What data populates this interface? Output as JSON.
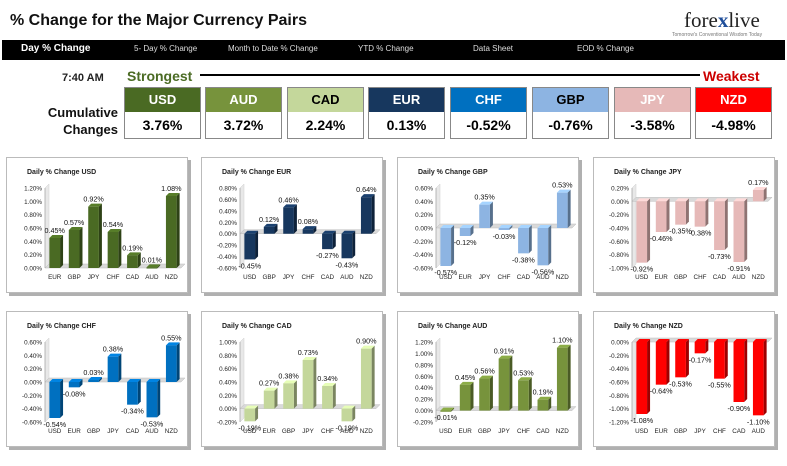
{
  "header": {
    "title": "% Change for the Major Currency Pairs",
    "logo_text_a": "fore",
    "logo_text_x": "x",
    "logo_text_b": "live",
    "logo_tagline": "Tomorrow's Conventional Wisdom Today"
  },
  "nav": [
    {
      "label": "Day % Change",
      "active": true
    },
    {
      "label": "5- Day % Change",
      "active": false
    },
    {
      "label": "Month to Date % Change",
      "active": false
    },
    {
      "label": "YTD % Change",
      "active": false
    },
    {
      "label": "Data Sheet",
      "active": false
    },
    {
      "label": "EOD % Change",
      "active": false
    }
  ],
  "ranking": {
    "time": "7:40 AM",
    "strongest_label": "Strongest",
    "weakest_label": "Weakest",
    "cumulative_label": "Cumulative Changes",
    "currencies": [
      {
        "code": "USD",
        "value": "3.76%",
        "color": "#4a6a23",
        "text_color": "#ffffff"
      },
      {
        "code": "AUD",
        "value": "3.72%",
        "color": "#77933c",
        "text_color": "#ffffff"
      },
      {
        "code": "CAD",
        "value": "2.24%",
        "color": "#c4d79b",
        "text_color": "#000000"
      },
      {
        "code": "EUR",
        "value": "0.13%",
        "color": "#17375e",
        "text_color": "#ffffff"
      },
      {
        "code": "CHF",
        "value": "-0.52%",
        "color": "#0070c0",
        "text_color": "#ffffff"
      },
      {
        "code": "GBP",
        "value": "-0.76%",
        "color": "#8db4e2",
        "text_color": "#000000"
      },
      {
        "code": "JPY",
        "value": "-3.58%",
        "color": "#e6b9b8",
        "text_color": "#ffffff"
      },
      {
        "code": "NZD",
        "value": "-4.98%",
        "color": "#ff0000",
        "text_color": "#ffffff"
      }
    ]
  },
  "chart_data": [
    {
      "type": "bar",
      "title": "Daily % Change USD",
      "categories": [
        "EUR",
        "GBP",
        "JPY",
        "CHF",
        "CAD",
        "AUD",
        "NZD"
      ],
      "values": [
        0.45,
        0.57,
        0.92,
        0.54,
        0.19,
        0.01,
        1.08
      ],
      "data_labels": [
        "0.45%",
        "0.57%",
        "0.92%",
        "0.54%",
        "0.19%",
        "0.01%",
        "1.08%"
      ],
      "ylim": [
        0,
        1.2
      ],
      "yticks": [
        "0.00%",
        "0.20%",
        "0.40%",
        "0.60%",
        "0.80%",
        "1.00%",
        "1.20%"
      ],
      "color": "#4a6a23"
    },
    {
      "type": "bar",
      "title": "Daily % Change EUR",
      "categories": [
        "USD",
        "GBP",
        "JPY",
        "CHF",
        "CAD",
        "AUD",
        "NZD"
      ],
      "values": [
        -0.45,
        0.12,
        0.46,
        0.08,
        -0.27,
        -0.43,
        0.64
      ],
      "data_labels": [
        "-0.45%",
        "0.12%",
        "0.46%",
        "0.08%",
        "-0.27%",
        "-0.43%",
        "0.64%"
      ],
      "ylim": [
        -0.6,
        0.8
      ],
      "yticks": [
        "-0.60%",
        "-0.40%",
        "-0.20%",
        "0.00%",
        "0.20%",
        "0.40%",
        "0.60%",
        "0.80%"
      ],
      "color": "#17375e"
    },
    {
      "type": "bar",
      "title": "Daily % Change GBP",
      "categories": [
        "USD",
        "EUR",
        "JPY",
        "CHF",
        "CAD",
        "AUD",
        "NZD"
      ],
      "values": [
        -0.57,
        -0.12,
        0.35,
        -0.03,
        -0.38,
        -0.56,
        0.53
      ],
      "data_labels": [
        "-0.57%",
        "-0.12%",
        "0.35%",
        "-0.03%",
        "-0.38%",
        "-0.56%",
        "0.53%"
      ],
      "ylim": [
        -0.6,
        0.6
      ],
      "yticks": [
        "-0.60%",
        "-0.40%",
        "-0.20%",
        "0.00%",
        "0.20%",
        "0.40%",
        "0.60%"
      ],
      "color": "#8db4e2"
    },
    {
      "type": "bar",
      "title": "Daily % Change JPY",
      "categories": [
        "USD",
        "EUR",
        "GBP",
        "CHF",
        "CAD",
        "AUD",
        "NZD"
      ],
      "values": [
        -0.92,
        -0.46,
        -0.35,
        -0.38,
        -0.73,
        -0.91,
        0.17
      ],
      "data_labels": [
        "-0.92%",
        "-0.46%",
        "-0.35%",
        "-0.38%",
        "-0.73%",
        "-0.91%",
        "0.17%"
      ],
      "ylim": [
        -1.0,
        0.2
      ],
      "yticks": [
        "-1.00%",
        "-0.80%",
        "-0.60%",
        "-0.40%",
        "-0.20%",
        "0.00%",
        "0.20%"
      ],
      "color": "#e6b9b8"
    },
    {
      "type": "bar",
      "title": "Daily % Change CHF",
      "categories": [
        "USD",
        "EUR",
        "GBP",
        "JPY",
        "CAD",
        "AUD",
        "NZD"
      ],
      "values": [
        -0.54,
        -0.08,
        0.03,
        0.38,
        -0.34,
        -0.53,
        0.55
      ],
      "data_labels": [
        "-0.54%",
        "-0.08%",
        "0.03%",
        "0.38%",
        "-0.34%",
        "-0.53%",
        "0.55%"
      ],
      "ylim": [
        -0.6,
        0.6
      ],
      "yticks": [
        "-0.60%",
        "-0.40%",
        "-0.20%",
        "0.00%",
        "0.20%",
        "0.40%",
        "0.60%"
      ],
      "color": "#0070c0"
    },
    {
      "type": "bar",
      "title": "Daily % Change CAD",
      "categories": [
        "USD",
        "EUR",
        "GBP",
        "JPY",
        "CHF",
        "AUD",
        "NZD"
      ],
      "values": [
        -0.19,
        0.27,
        0.38,
        0.73,
        0.34,
        -0.19,
        0.9
      ],
      "data_labels": [
        "-0.19%",
        "0.27%",
        "0.38%",
        "0.73%",
        "0.34%",
        "-0.19%",
        "0.90%"
      ],
      "ylim": [
        -0.2,
        1.0
      ],
      "yticks": [
        "-0.20%",
        "0.00%",
        "0.20%",
        "0.40%",
        "0.60%",
        "0.80%",
        "1.00%"
      ],
      "color": "#c4d79b"
    },
    {
      "type": "bar",
      "title": "Daily % Change AUD",
      "categories": [
        "USD",
        "EUR",
        "GBP",
        "JPY",
        "CHF",
        "CAD",
        "NZD"
      ],
      "values": [
        -0.01,
        0.45,
        0.56,
        0.91,
        0.53,
        0.19,
        1.1
      ],
      "data_labels": [
        "-0.01%",
        "0.45%",
        "0.56%",
        "0.91%",
        "0.53%",
        "0.19%",
        "1.10%"
      ],
      "ylim": [
        -0.2,
        1.2
      ],
      "yticks": [
        "-0.20%",
        "0.00%",
        "0.20%",
        "0.40%",
        "0.60%",
        "0.80%",
        "1.00%",
        "1.20%"
      ],
      "color": "#77933c"
    },
    {
      "type": "bar",
      "title": "Daily % Change NZD",
      "categories": [
        "USD",
        "EUR",
        "GBP",
        "JPY",
        "CHF",
        "CAD",
        "AUD"
      ],
      "values": [
        -1.08,
        -0.64,
        -0.53,
        -0.17,
        -0.55,
        -0.9,
        -1.1
      ],
      "data_labels": [
        "-1.08%",
        "-0.64%",
        "-0.53%",
        "-0.17%",
        "-0.55%",
        "-0.90%",
        "-1.10%"
      ],
      "ylim": [
        -1.2,
        0.0
      ],
      "yticks": [
        "-1.20%",
        "-1.00%",
        "-0.80%",
        "-0.60%",
        "-0.40%",
        "-0.20%",
        "0.00%"
      ],
      "color": "#ff0000"
    }
  ]
}
